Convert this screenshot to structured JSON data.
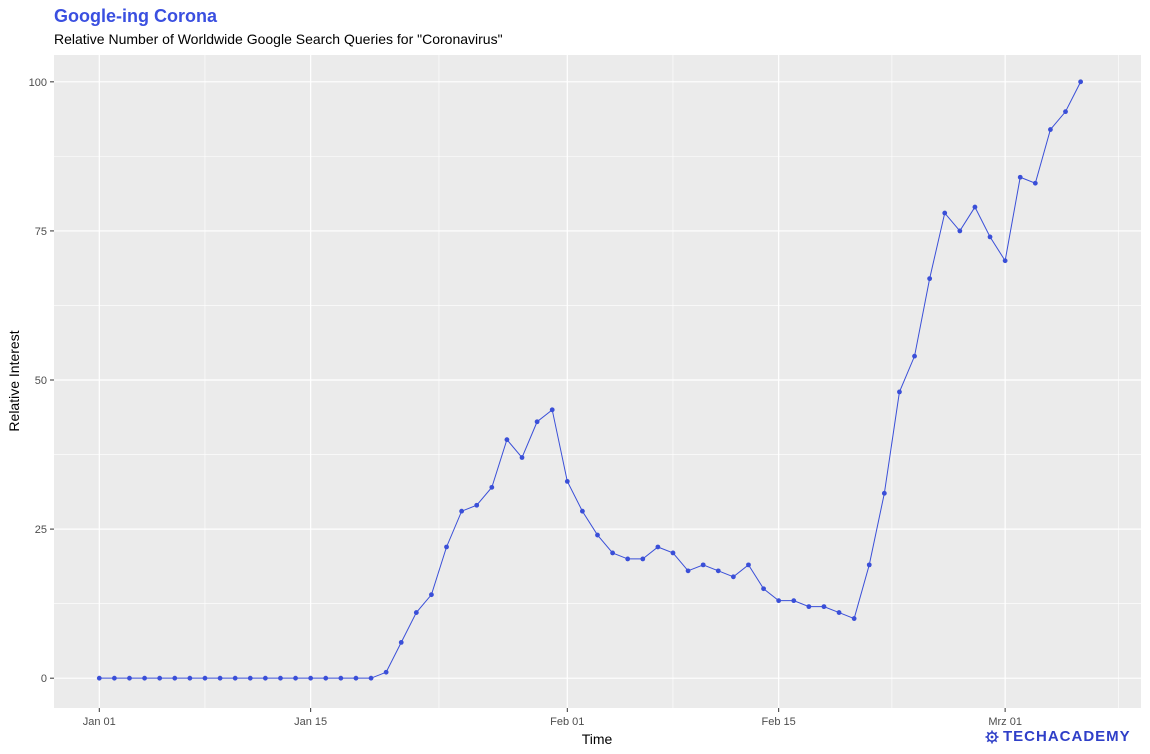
{
  "header": {
    "title": "Google-ing Corona",
    "subtitle": "Relative Number of Worldwide Google Search Queries for \"Coronavirus\""
  },
  "logo": {
    "text": "TECHACADEMY",
    "icon": "gear-icon"
  },
  "colors": {
    "line": "#3a4fd8",
    "panel": "#ebebeb",
    "grid": "#ffffff",
    "title": "#3a4fe0"
  },
  "chart_data": {
    "type": "line",
    "title": "Google-ing Corona",
    "subtitle": "Relative Number of Worldwide Google Search Queries for \"Coronavirus\"",
    "xlabel": "Time",
    "ylabel": "Relative Interest",
    "x_start": "2020-01-01",
    "x_range": [
      "2019-12-29",
      "2020-03-10"
    ],
    "ylim": [
      -5,
      104.5
    ],
    "yticks": [
      0,
      25,
      50,
      75,
      100
    ],
    "xticks": [
      {
        "date": "2020-01-01",
        "label": "Jan 01"
      },
      {
        "date": "2020-01-15",
        "label": "Jan 15"
      },
      {
        "date": "2020-02-01",
        "label": "Feb 01"
      },
      {
        "date": "2020-02-15",
        "label": "Feb 15"
      },
      {
        "date": "2020-03-01",
        "label": "Mrz 01"
      }
    ],
    "grid": true,
    "series": [
      {
        "name": "Coronavirus",
        "values": [
          0,
          0,
          0,
          0,
          0,
          0,
          0,
          0,
          0,
          0,
          0,
          0,
          0,
          0,
          0,
          0,
          0,
          0,
          0,
          1,
          6,
          11,
          14,
          22,
          28,
          29,
          32,
          40,
          37,
          43,
          45,
          33,
          28,
          24,
          21,
          20,
          20,
          22,
          21,
          18,
          19,
          18,
          17,
          19,
          15,
          13,
          13,
          12,
          12,
          11,
          10,
          19,
          31,
          48,
          54,
          67,
          78,
          75,
          79,
          74,
          70,
          84,
          83,
          92,
          95,
          100
        ]
      }
    ]
  }
}
